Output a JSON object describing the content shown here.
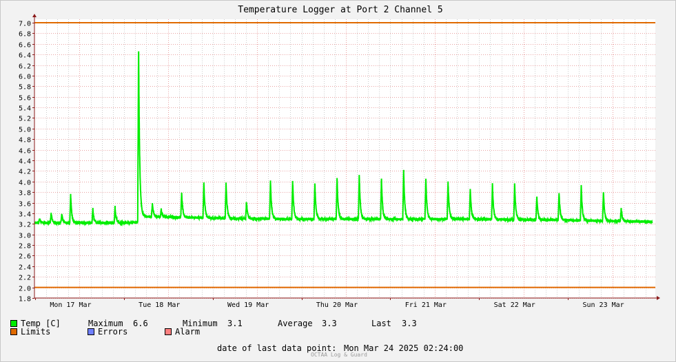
{
  "chart_data": {
    "type": "line",
    "title": "Temperature Logger at Port 2 Channel 5",
    "ylim": [
      1.8,
      7.0
    ],
    "yticks": [
      1.8,
      2.0,
      2.2,
      2.4,
      2.6,
      2.8,
      3.0,
      3.2,
      3.4,
      3.6,
      3.8,
      4.0,
      4.2,
      4.4,
      4.6,
      4.8,
      5.0,
      5.2,
      5.4,
      5.6,
      5.8,
      6.0,
      6.2,
      6.4,
      6.6,
      6.8,
      7.0
    ],
    "ytick_labels": [
      "1.8",
      "2.0",
      "2.2",
      "2.4",
      "2.6",
      "2.8",
      "3.0",
      "3.2",
      "3.4",
      "3.6",
      "3.8",
      "4.0",
      "4.2",
      "4.4",
      "4.6",
      "4.8",
      "5.0",
      "5.2",
      "5.4",
      "5.6",
      "5.8",
      "6.0",
      "6.2",
      "6.4",
      "6.6",
      "6.8",
      "7.0"
    ],
    "xlim_days": [
      0,
      7
    ],
    "x_ticks": [
      "Mon 17 Mar",
      "Tue 18 Mar",
      "Wed 19 Mar",
      "Thu 20 Mar",
      "Fri 21 Mar",
      "Sat 22 Mar",
      "Sun 23 Mar"
    ],
    "limits": [
      7.0,
      2.0
    ],
    "baseline": [
      [
        0.0,
        3.22
      ],
      [
        0.5,
        3.22
      ],
      [
        1.0,
        3.22
      ],
      [
        1.17,
        3.23
      ],
      [
        1.2,
        3.34
      ],
      [
        2.0,
        3.31
      ],
      [
        2.3,
        3.3
      ],
      [
        3.0,
        3.29
      ],
      [
        4.0,
        3.29
      ],
      [
        5.0,
        3.29
      ],
      [
        6.0,
        3.27
      ],
      [
        6.95,
        3.24
      ]
    ],
    "peaks": [
      [
        0.05,
        3.3
      ],
      [
        0.18,
        3.4
      ],
      [
        0.3,
        3.38
      ],
      [
        0.4,
        3.75
      ],
      [
        0.65,
        3.48
      ],
      [
        0.9,
        3.52
      ],
      [
        1.165,
        6.62
      ],
      [
        1.32,
        3.58
      ],
      [
        1.42,
        3.47
      ],
      [
        1.65,
        3.8
      ],
      [
        1.9,
        3.97
      ],
      [
        2.15,
        3.97
      ],
      [
        2.38,
        3.62
      ],
      [
        2.65,
        4.01
      ],
      [
        2.9,
        4.02
      ],
      [
        3.15,
        3.97
      ],
      [
        3.4,
        4.08
      ],
      [
        3.65,
        4.13
      ],
      [
        3.9,
        4.07
      ],
      [
        4.15,
        4.22
      ],
      [
        4.4,
        4.05
      ],
      [
        4.65,
        4.0
      ],
      [
        4.9,
        3.87
      ],
      [
        5.15,
        3.95
      ],
      [
        5.4,
        3.96
      ],
      [
        5.65,
        3.73
      ],
      [
        5.9,
        3.8
      ],
      [
        6.15,
        3.93
      ],
      [
        6.4,
        3.82
      ],
      [
        6.6,
        3.48
      ]
    ]
  },
  "colors": {
    "temp": "#00ee00",
    "limits": "#e06a00",
    "errors": "#6f7fff",
    "alarm": "#ff7f7f",
    "major_grid": "#e8a0a0",
    "minor_grid": "#cccccc"
  },
  "legend": {
    "temp_label": "Temp [C]",
    "maximum_label": "Maximum",
    "maximum_value": "6.6",
    "minimum_label": "Minimum",
    "minimum_value": "3.1",
    "average_label": "Average",
    "average_value": "3.3",
    "last_label": "Last",
    "last_value": "3.3",
    "limits_label": "Limits",
    "errors_label": "Errors",
    "alarm_label": "Alarm"
  },
  "footer": {
    "last_point_label": "date of last data point:",
    "last_point_value": "Mon Mar 24 2025 02:24:00",
    "watermark": "OCTAA Log & Guard"
  }
}
